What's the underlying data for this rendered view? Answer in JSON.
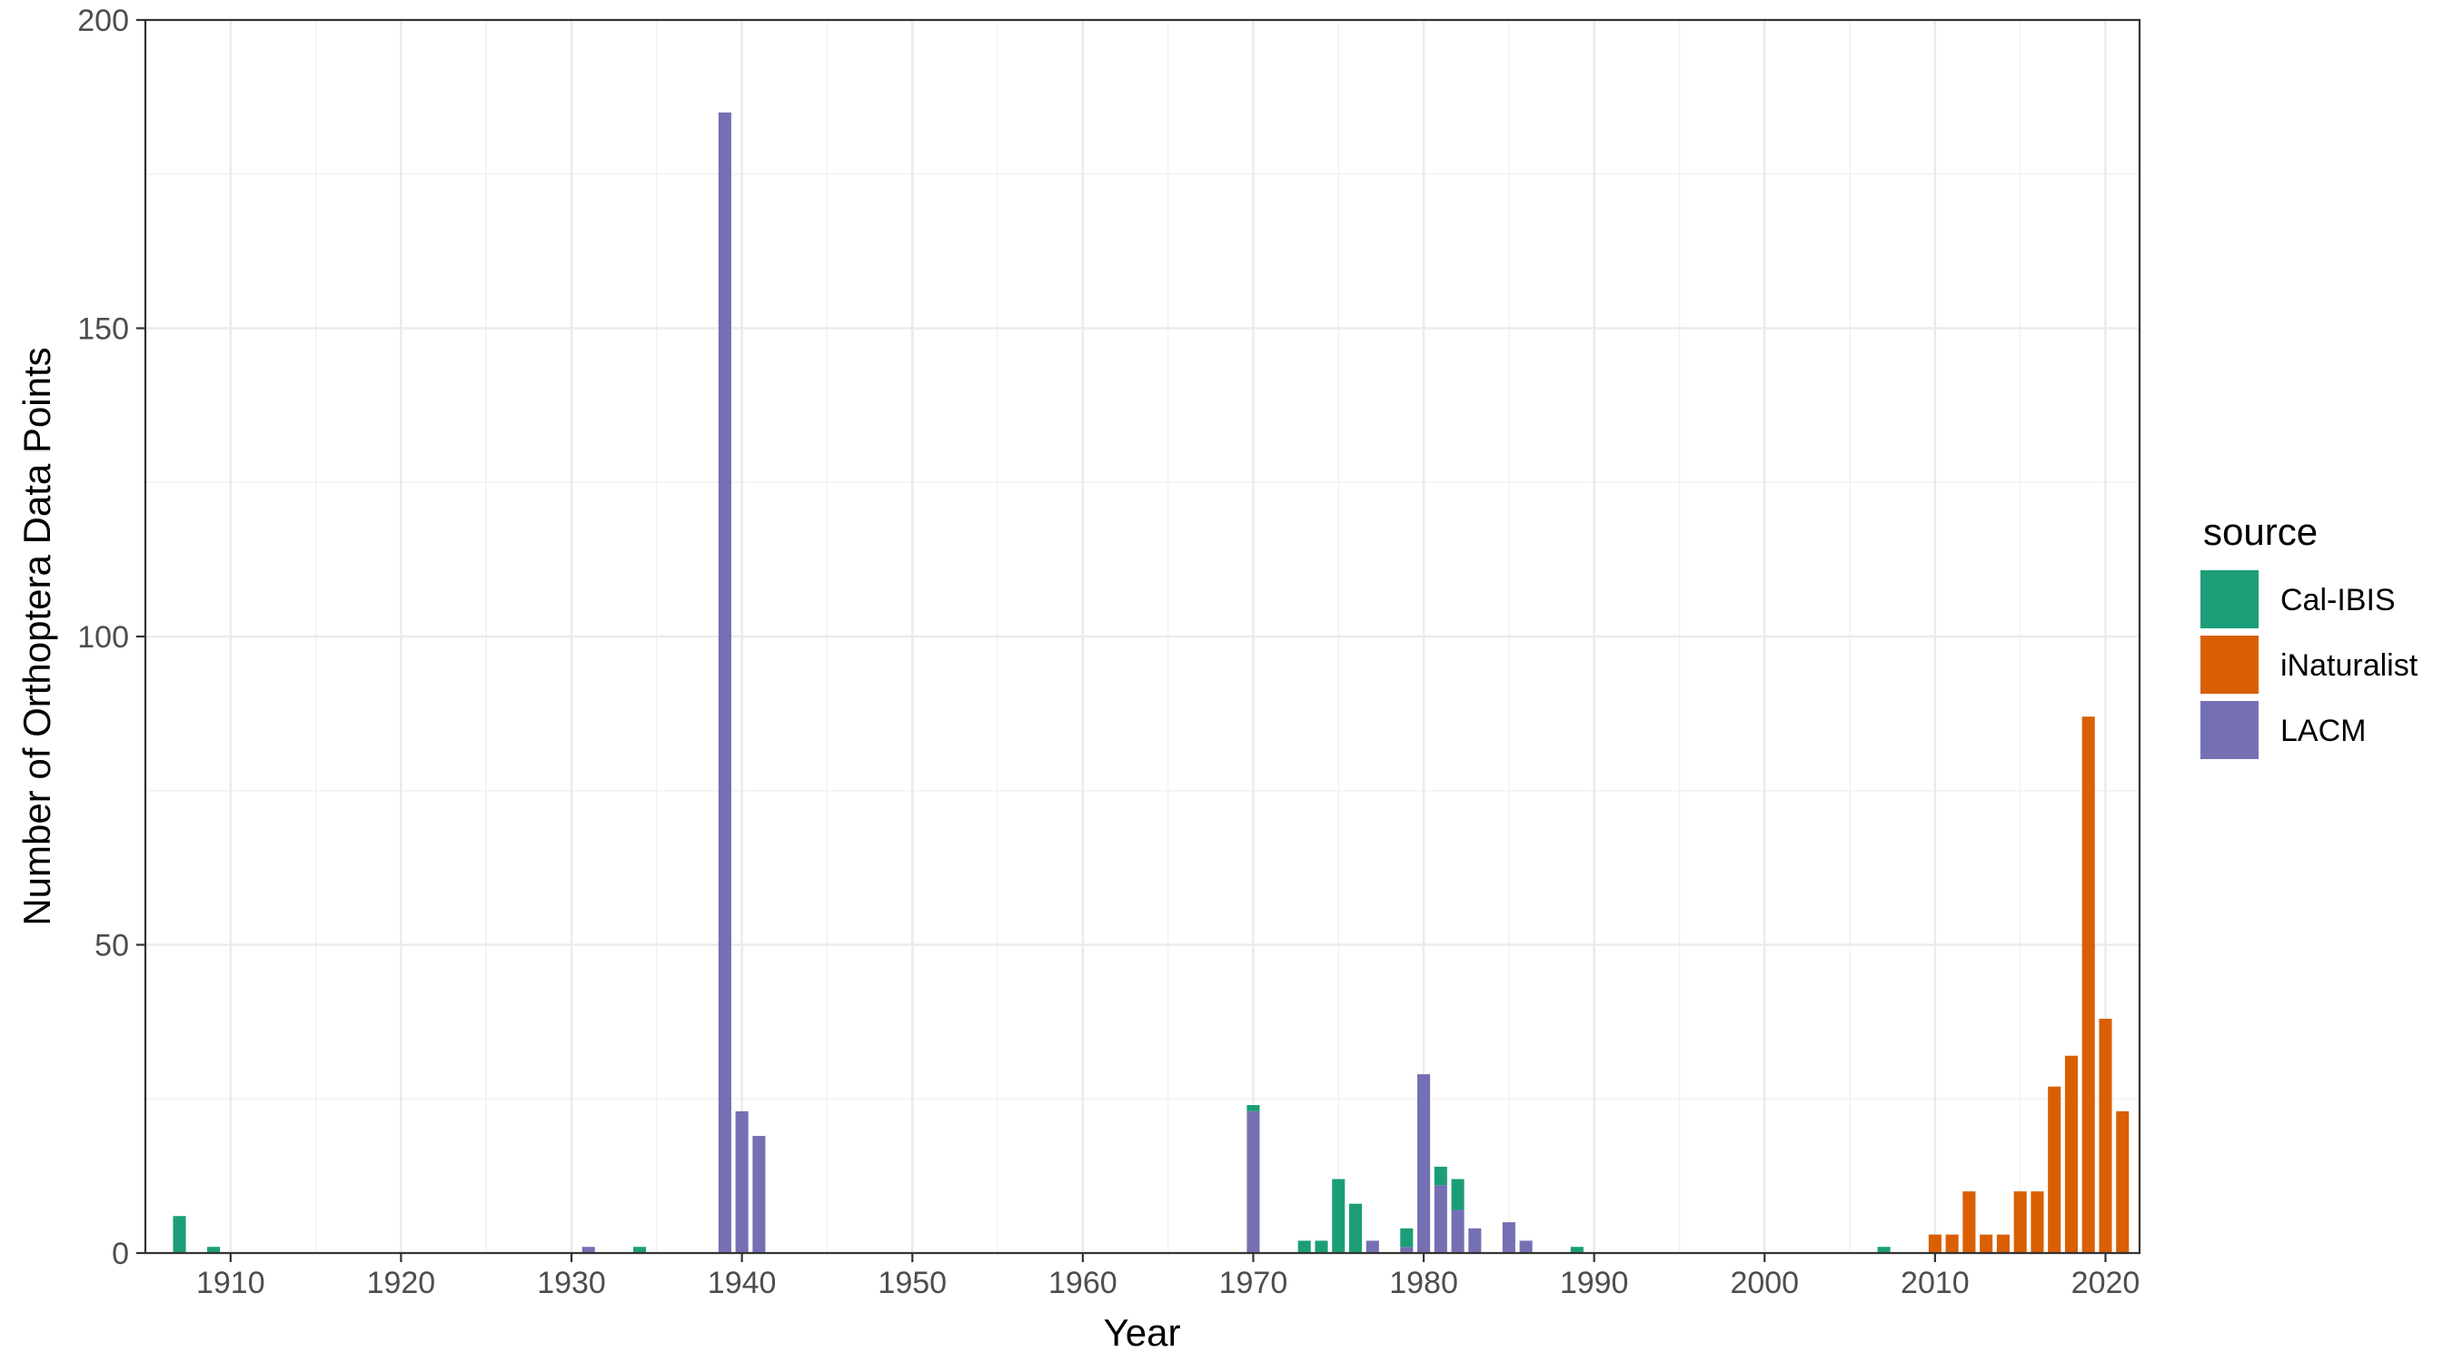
{
  "chart_data": {
    "type": "bar",
    "stacked": true,
    "title": "",
    "xlabel": "Year",
    "ylabel": "Number of Orthoptera Data Points",
    "xlim": [
      1905,
      2022
    ],
    "ylim": [
      0,
      200
    ],
    "x_ticks": [
      1910,
      1920,
      1930,
      1940,
      1950,
      1960,
      1970,
      1980,
      1990,
      2000,
      2010,
      2020
    ],
    "y_ticks": [
      0,
      50,
      100,
      150,
      200
    ],
    "grid": true,
    "legend": {
      "title": "source",
      "position": "right"
    },
    "series": [
      {
        "name": "Cal-IBIS",
        "color": "#1b9e77",
        "points": [
          {
            "x": 1907,
            "y": 6
          },
          {
            "x": 1909,
            "y": 1
          },
          {
            "x": 1934,
            "y": 1
          },
          {
            "x": 1970,
            "y": 1
          },
          {
            "x": 1973,
            "y": 2
          },
          {
            "x": 1974,
            "y": 2
          },
          {
            "x": 1975,
            "y": 12
          },
          {
            "x": 1976,
            "y": 8
          },
          {
            "x": 1979,
            "y": 3
          },
          {
            "x": 1981,
            "y": 3
          },
          {
            "x": 1982,
            "y": 5
          },
          {
            "x": 1989,
            "y": 1
          },
          {
            "x": 2007,
            "y": 1
          }
        ]
      },
      {
        "name": "iNaturalist",
        "color": "#d95f02",
        "points": [
          {
            "x": 2010,
            "y": 3
          },
          {
            "x": 2011,
            "y": 3
          },
          {
            "x": 2012,
            "y": 10
          },
          {
            "x": 2013,
            "y": 3
          },
          {
            "x": 2014,
            "y": 3
          },
          {
            "x": 2015,
            "y": 10
          },
          {
            "x": 2016,
            "y": 10
          },
          {
            "x": 2017,
            "y": 27
          },
          {
            "x": 2018,
            "y": 32
          },
          {
            "x": 2019,
            "y": 87
          },
          {
            "x": 2020,
            "y": 38
          },
          {
            "x": 2021,
            "y": 23
          }
        ]
      },
      {
        "name": "LACM",
        "color": "#7570b3",
        "points": [
          {
            "x": 1931,
            "y": 1
          },
          {
            "x": 1939,
            "y": 185
          },
          {
            "x": 1940,
            "y": 23
          },
          {
            "x": 1941,
            "y": 19
          },
          {
            "x": 1970,
            "y": 23
          },
          {
            "x": 1977,
            "y": 2
          },
          {
            "x": 1979,
            "y": 1
          },
          {
            "x": 1980,
            "y": 29
          },
          {
            "x": 1981,
            "y": 11
          },
          {
            "x": 1982,
            "y": 7
          },
          {
            "x": 1983,
            "y": 4
          },
          {
            "x": 1985,
            "y": 5
          },
          {
            "x": 1986,
            "y": 2
          }
        ]
      }
    ]
  }
}
